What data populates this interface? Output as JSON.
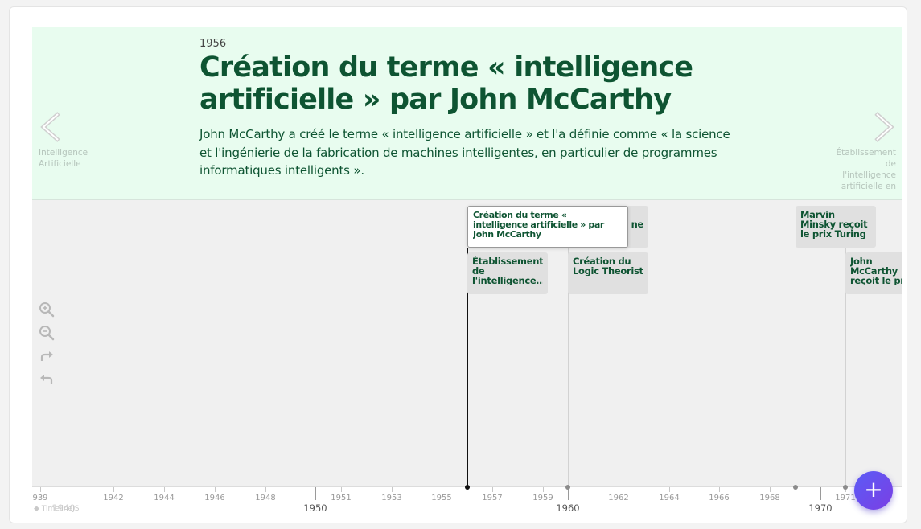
{
  "slide": {
    "date": "1956",
    "headline": "Création du terme « intelligence artificielle » par John McCarthy",
    "description": "John McCarthy a créé le terme « intelligence artificielle » et l'a définie comme « la science et l'ingénierie de la fabrication de machines intelligentes, en particulier de programmes informatiques intelligents »."
  },
  "nav": {
    "prev_title": "Intelligence Artificielle",
    "next_title": "Établissement de l'intelligence artificielle en tant que"
  },
  "markers": [
    {
      "id": "mccarthy-term",
      "year": 1956,
      "label": "Création du terme « intelligence artificielle » par John McCarthy",
      "active": true
    },
    {
      "id": "hidden-behind",
      "year": 1956,
      "label": "ne",
      "active": false
    },
    {
      "id": "etablissement",
      "year": 1956,
      "label": "Établissement de l'intelligence…",
      "active": false
    },
    {
      "id": "logic-theorist",
      "year": 1960,
      "label": "Création du Logic Theorist",
      "active": false
    },
    {
      "id": "minsky-turing",
      "year": 1969,
      "label": "Marvin Minsky reçoit le prix Turing",
      "active": false
    },
    {
      "id": "mccarthy-turing",
      "year": 1971,
      "label": "John McCarthy reçoit le prix Turing",
      "active": false
    }
  ],
  "axis": {
    "minor_labels": [
      "939",
      "1942",
      "1944",
      "1946",
      "1948",
      "1951",
      "1953",
      "1955",
      "1957",
      "1959",
      "1962",
      "1964",
      "1966",
      "1968",
      "1971"
    ],
    "major_labels": [
      "1940",
      "1950",
      "1960",
      "1970"
    ]
  },
  "attribution": "TimelineJS",
  "fab_label": "+",
  "colors": {
    "slider_bg": "#e8fcef",
    "headline": "#0e5432",
    "fab_start": "#5b5bf6",
    "fab_end": "#7b3fe4"
  },
  "icons": {
    "prev": "chevron-left-icon",
    "next": "chevron-right-icon",
    "zoom_in": "zoom-in-icon",
    "zoom_out": "zoom-out-icon",
    "redo": "redo-icon",
    "undo": "undo-icon"
  }
}
